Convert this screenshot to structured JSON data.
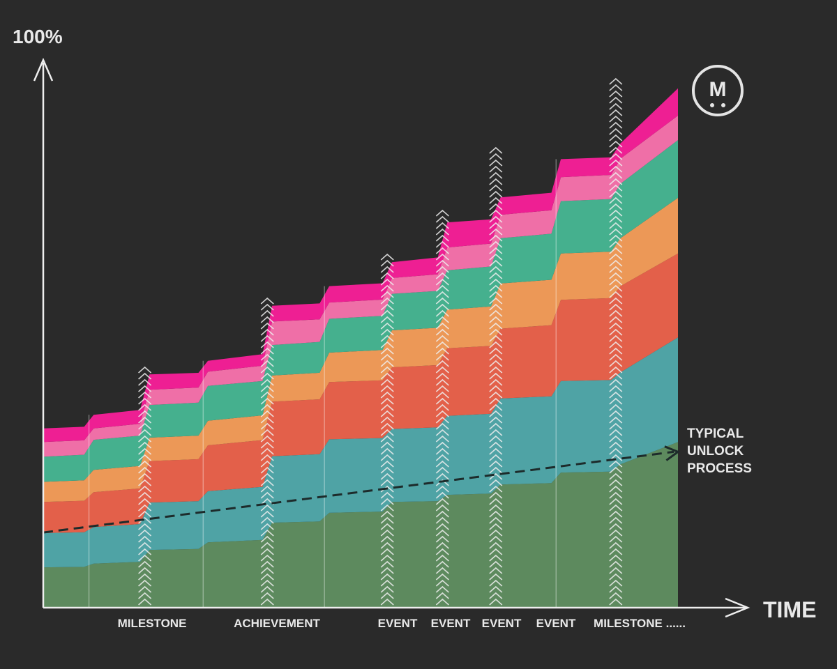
{
  "chart_data": {
    "type": "area",
    "stacked": true,
    "y_axis_label": "100%",
    "x_axis_label": "TIME",
    "ylim": [
      0,
      100
    ],
    "legend": "none",
    "grid": false,
    "x_event_labels": [
      "MILESTONE",
      "ACHIEVEMENT",
      "EVENT",
      "EVENT",
      "EVENT",
      "EVENT",
      "MILESTONE ......"
    ],
    "annotation": {
      "text_lines": [
        "TYPICAL",
        "UNLOCK",
        "PROCESS"
      ]
    },
    "trend_line": {
      "style": "dashed",
      "from_value": 13.8,
      "to_value": 28.6
    },
    "stack_order_bottom_to_top": [
      "green",
      "teal",
      "red",
      "orange",
      "mint",
      "pink",
      "magenta"
    ],
    "series_colors": {
      "green": "#5d8a5e",
      "teal": "#4fa3a5",
      "red": "#e3604a",
      "orange": "#ec9857",
      "mint": "#45b08e",
      "pink": "#ef6fa7",
      "magenta": "#ee1f93"
    },
    "arrow_color": "#eeeeee",
    "logo": {
      "text": "M"
    },
    "band_tops": {
      "x": [
        0,
        7.2,
        16,
        25.2,
        35.3,
        44.3,
        54.2,
        62.9,
        71.3,
        80.8,
        90.2,
        100
      ],
      "x_jump_width": 1.5,
      "green": [
        7.4,
        8.1,
        10.6,
        12.0,
        15.6,
        17.4,
        19.4,
        20.7,
        22.6,
        24.8,
        26.3,
        30.4
      ],
      "teal": [
        13.7,
        14.8,
        19.3,
        21.4,
        27.8,
        30.9,
        32.8,
        35.2,
        38.4,
        41.6,
        43.2,
        49.6
      ],
      "red": [
        19.4,
        21.2,
        26.9,
        29.8,
        37.8,
        41.4,
        44.1,
        47.6,
        51.2,
        56.5,
        59.0,
        65.0
      ],
      "orange": [
        23.1,
        25.3,
        31.2,
        34.3,
        42.6,
        46.8,
        50.9,
        54.7,
        59.5,
        65.0,
        67.8,
        75.2
      ],
      "mint": [
        27.7,
        30.8,
        37.2,
        40.7,
        48.2,
        53.0,
        57.6,
        61.9,
        67.8,
        74.6,
        77.8,
        85.8
      ],
      "pink": [
        30.4,
        32.9,
        40.0,
        43.3,
        52.5,
        56.0,
        60.5,
        66.1,
        72.1,
        79.0,
        82.4,
        90.3
      ],
      "magenta": [
        32.9,
        35.4,
        42.8,
        45.3,
        55.4,
        59.0,
        63.4,
        70.7,
        75.3,
        82.3,
        85.2,
        95.3
      ]
    }
  }
}
